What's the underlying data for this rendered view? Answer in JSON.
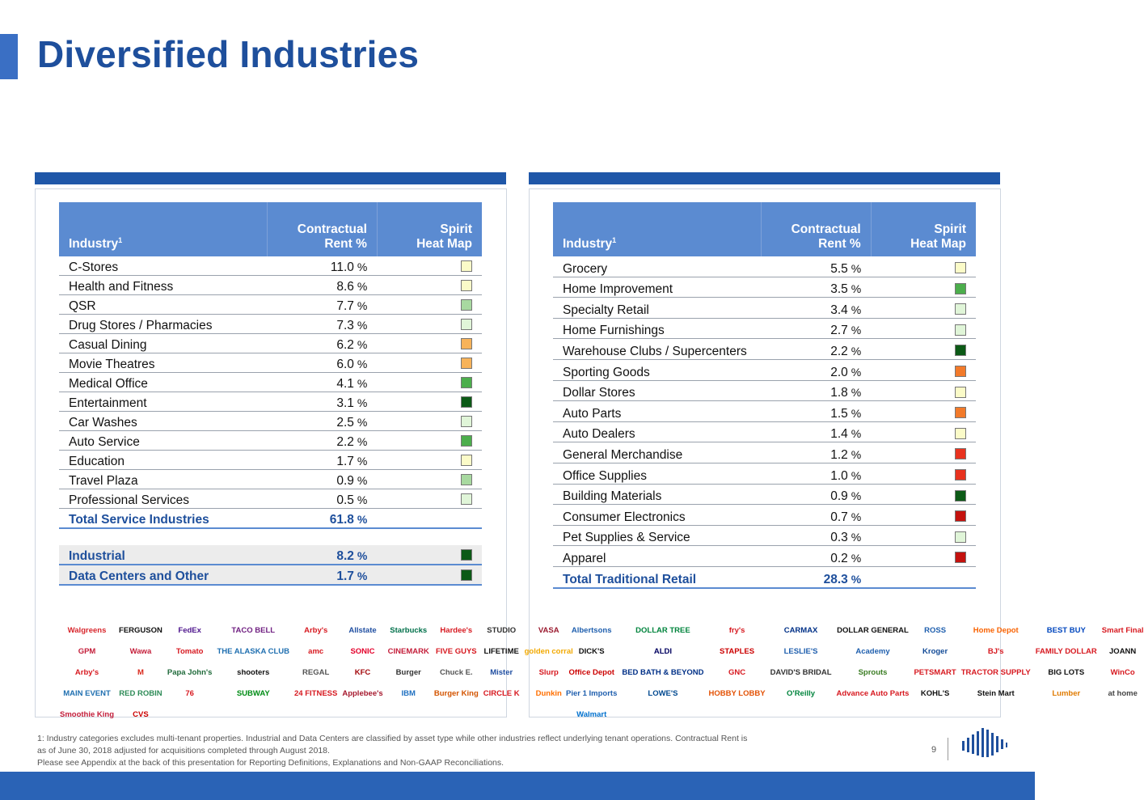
{
  "title": "Diversified Industries",
  "colors": {
    "brand": "#1e4f9c",
    "header_fill": "#5b8bd1",
    "heat_light_yellow": "#fbfbc8",
    "heat_light_green": "#e0f5d8",
    "heat_mid_green": "#a8d9a0",
    "heat_green": "#4cae4c",
    "heat_dark_green": "#0c5a16",
    "heat_orange": "#f7b35a",
    "heat_red_orange": "#f27a2a",
    "heat_red": "#e8321e",
    "heat_dark_red": "#c4120e"
  },
  "left_table": {
    "headers": {
      "industry": "Industry",
      "industry_sup": "1",
      "rent_line1": "Contractual",
      "rent_line2": "Rent %",
      "heat_line1": "Spirit",
      "heat_line2": "Heat Map"
    },
    "rows": [
      {
        "name": "C-Stores",
        "value": "11.0",
        "heat": "light-yellow"
      },
      {
        "name": "Health and Fitness",
        "value": "8.6",
        "heat": "light-yellow"
      },
      {
        "name": "QSR",
        "value": "7.7",
        "heat": "mid-green"
      },
      {
        "name": "Drug Stores / Pharmacies",
        "value": "7.3",
        "heat": "light-green"
      },
      {
        "name": "Casual Dining",
        "value": "6.2",
        "heat": "orange"
      },
      {
        "name": "Movie Theatres",
        "value": "6.0",
        "heat": "orange"
      },
      {
        "name": "Medical Office",
        "value": "4.1",
        "heat": "green"
      },
      {
        "name": "Entertainment",
        "value": "3.1",
        "heat": "dark-green"
      },
      {
        "name": "Car Washes",
        "value": "2.5",
        "heat": "light-green"
      },
      {
        "name": "Auto Service",
        "value": "2.2",
        "heat": "green"
      },
      {
        "name": "Education",
        "value": "1.7",
        "heat": "light-yellow"
      },
      {
        "name": "Travel Plaza",
        "value": "0.9",
        "heat": "mid-green"
      },
      {
        "name": "Professional Services",
        "value": "0.5",
        "heat": "light-green"
      }
    ],
    "total": {
      "name": "Total Service Industries",
      "value": "61.8"
    },
    "extra": [
      {
        "name": "Industrial",
        "value": "8.2",
        "heat": "dark-green"
      },
      {
        "name": "Data Centers and Other",
        "value": "1.7",
        "heat": "dark-green"
      }
    ],
    "pct": "%"
  },
  "right_table": {
    "headers": {
      "industry": "Industry",
      "industry_sup": "1",
      "rent_line1": "Contractual",
      "rent_line2": "Rent %",
      "heat_line1": "Spirit",
      "heat_line2": "Heat Map"
    },
    "rows": [
      {
        "name": "Grocery",
        "value": "5.5",
        "heat": "light-yellow"
      },
      {
        "name": "Home Improvement",
        "value": "3.5",
        "heat": "green"
      },
      {
        "name": "Specialty Retail",
        "value": "3.4",
        "heat": "light-green"
      },
      {
        "name": "Home Furnishings",
        "value": "2.7",
        "heat": "light-green"
      },
      {
        "name": "Warehouse Clubs / Supercenters",
        "value": "2.2",
        "heat": "dark-green"
      },
      {
        "name": "Sporting Goods",
        "value": "2.0",
        "heat": "red-orange"
      },
      {
        "name": "Dollar Stores",
        "value": "1.8",
        "heat": "light-yellow"
      },
      {
        "name": "Auto Parts",
        "value": "1.5",
        "heat": "red-orange"
      },
      {
        "name": "Auto Dealers",
        "value": "1.4",
        "heat": "light-yellow"
      },
      {
        "name": "General Merchandise",
        "value": "1.2",
        "heat": "red"
      },
      {
        "name": "Office Supplies",
        "value": "1.0",
        "heat": "red"
      },
      {
        "name": "Building Materials",
        "value": "0.9",
        "heat": "dark-green"
      },
      {
        "name": "Consumer Electronics",
        "value": "0.7",
        "heat": "dark-red"
      },
      {
        "name": "Pet Supplies & Service",
        "value": "0.3",
        "heat": "light-green"
      },
      {
        "name": "Apparel",
        "value": "0.2",
        "heat": "dark-red"
      }
    ],
    "total": {
      "name": "Total Traditional Retail",
      "value": "28.3"
    },
    "pct": "%"
  },
  "left_logos": [
    {
      "text": "Walgreens",
      "color": "#d8262c"
    },
    {
      "text": "FERGUSON",
      "color": "#111111"
    },
    {
      "text": "FedEx",
      "color": "#4d148c"
    },
    {
      "text": "TACO BELL",
      "color": "#702082"
    },
    {
      "text": "Arby's",
      "color": "#d71920"
    },
    {
      "text": "Allstate",
      "color": "#1f4ea1"
    },
    {
      "text": "Starbucks",
      "color": "#00704a"
    },
    {
      "text": "Hardee's",
      "color": "#d71920"
    },
    {
      "text": "STUDIO",
      "color": "#333333"
    },
    {
      "text": "VASA",
      "color": "#9b1b30"
    },
    {
      "text": "GPM",
      "color": "#c41e3a"
    },
    {
      "text": "Wawa",
      "color": "#c41e3a"
    },
    {
      "text": "Tomato",
      "color": "#d71920"
    },
    {
      "text": "THE ALASKA CLUB",
      "color": "#1f6fb0"
    },
    {
      "text": "amc",
      "color": "#d71920"
    },
    {
      "text": "SONIC",
      "color": "#e4002b"
    },
    {
      "text": "CINEMARK",
      "color": "#c41e3a"
    },
    {
      "text": "FIVE GUYS",
      "color": "#d71920"
    },
    {
      "text": "LIFETIME",
      "color": "#111111"
    },
    {
      "text": "golden corral",
      "color": "#f2a900"
    },
    {
      "text": "Arby's",
      "color": "#d71920"
    },
    {
      "text": "M",
      "color": "#da291c"
    },
    {
      "text": "Papa John's",
      "color": "#1f6a3a"
    },
    {
      "text": "shooters",
      "color": "#111111"
    },
    {
      "text": "REGAL",
      "color": "#555555"
    },
    {
      "text": "KFC",
      "color": "#a3080c"
    },
    {
      "text": "Burger",
      "color": "#333333"
    },
    {
      "text": "Chuck E.",
      "color": "#555555"
    },
    {
      "text": "Mister",
      "color": "#1f4ea1"
    },
    {
      "text": "Slurp",
      "color": "#d71920"
    },
    {
      "text": "MAIN EVENT",
      "color": "#1f6fb0"
    },
    {
      "text": "RED ROBIN",
      "color": "#2e8b57"
    },
    {
      "text": "76",
      "color": "#d71920"
    },
    {
      "text": "SUBWAY",
      "color": "#008c15"
    },
    {
      "text": "24 FITNESS",
      "color": "#d71920"
    },
    {
      "text": "Applebee's",
      "color": "#a6192e"
    },
    {
      "text": "IBM",
      "color": "#1f70c1"
    },
    {
      "text": "Burger King",
      "color": "#d35400"
    },
    {
      "text": "CIRCLE K",
      "color": "#d71920"
    },
    {
      "text": "Dunkin",
      "color": "#ff6f00"
    },
    {
      "text": "Smoothie King",
      "color": "#c41e3a"
    },
    {
      "text": "CVS",
      "color": "#cc0000"
    }
  ],
  "right_logos": [
    {
      "text": "Albertsons",
      "color": "#1f5fae"
    },
    {
      "text": "DOLLAR TREE",
      "color": "#00843d"
    },
    {
      "text": "fry's",
      "color": "#d71920"
    },
    {
      "text": "CARMAX",
      "color": "#003087"
    },
    {
      "text": "DOLLAR GENERAL",
      "color": "#111111"
    },
    {
      "text": "ROSS",
      "color": "#1f5fae"
    },
    {
      "text": "Home Depot",
      "color": "#f96302"
    },
    {
      "text": "BEST BUY",
      "color": "#0046be"
    },
    {
      "text": "Smart Final",
      "color": "#d71920"
    },
    {
      "text": "DICK'S",
      "color": "#111111"
    },
    {
      "text": "ALDI",
      "color": "#00005f"
    },
    {
      "text": "STAPLES",
      "color": "#cc0000"
    },
    {
      "text": "LESLIE'S",
      "color": "#1f5fae"
    },
    {
      "text": "Academy",
      "color": "#1f5fae"
    },
    {
      "text": "Kroger",
      "color": "#134b97"
    },
    {
      "text": "BJ's",
      "color": "#d71920"
    },
    {
      "text": "FAMILY DOLLAR",
      "color": "#d71920"
    },
    {
      "text": "JOANN",
      "color": "#111111"
    },
    {
      "text": "Office Depot",
      "color": "#cc0000"
    },
    {
      "text": "BED BATH & BEYOND",
      "color": "#003087"
    },
    {
      "text": "GNC",
      "color": "#d71920"
    },
    {
      "text": "DAVID'S BRIDAL",
      "color": "#333333"
    },
    {
      "text": "Sprouts",
      "color": "#3b7d23"
    },
    {
      "text": "PETSMART",
      "color": "#d71920"
    },
    {
      "text": "TRACTOR SUPPLY",
      "color": "#d71920"
    },
    {
      "text": "BIG LOTS",
      "color": "#111111"
    },
    {
      "text": "WinCo",
      "color": "#d71920"
    },
    {
      "text": "Pier 1 Imports",
      "color": "#1f5fae"
    },
    {
      "text": "LOWE'S",
      "color": "#004990"
    },
    {
      "text": "HOBBY LOBBY",
      "color": "#e35205"
    },
    {
      "text": "O'Reilly",
      "color": "#00843d"
    },
    {
      "text": "Advance Auto Parts",
      "color": "#d71920"
    },
    {
      "text": "KOHL'S",
      "color": "#111111"
    },
    {
      "text": "Stein Mart",
      "color": "#111111"
    },
    {
      "text": "Lumber",
      "color": "#e07b00"
    },
    {
      "text": "at home",
      "color": "#444444"
    },
    {
      "text": "Walmart",
      "color": "#0071ce"
    }
  ],
  "footnote": {
    "line1": "1: Industry categories excludes multi-tenant properties. Industrial and Data Centers are classified by asset type while other industries reflect underlying tenant operations. Contractual Rent is",
    "line2": "as of June 30, 2018 adjusted for acquisitions completed through August 2018.",
    "line3": "Please see Appendix at the back of this presentation for Reporting Definitions, Explanations and Non-GAAP Reconciliations."
  },
  "page_number": "9"
}
